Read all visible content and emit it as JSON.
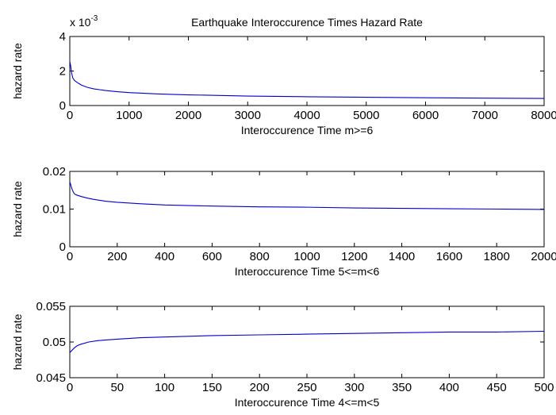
{
  "chart_data": [
    {
      "type": "line",
      "title": "Earthquake Interoccurence Times Hazard Rate",
      "xlabel": "Interoccurence Time m>=6",
      "ylabel": "hazard rate",
      "y_exponent_base": "x 10",
      "y_exponent_power": "-3",
      "xlim": [
        0,
        8000
      ],
      "ylim": [
        0,
        4
      ],
      "xticks": [
        0,
        1000,
        2000,
        3000,
        4000,
        5000,
        6000,
        7000,
        8000
      ],
      "yticks": [
        0,
        2,
        4
      ],
      "xtick_labels": [
        "0",
        "1000",
        "2000",
        "3000",
        "4000",
        "5000",
        "6000",
        "7000",
        "8000"
      ],
      "ytick_labels": [
        "0",
        "2",
        "4"
      ],
      "line_color": "#0000cc",
      "series": [
        {
          "x": [
            0,
            15,
            30,
            50,
            80,
            100,
            150,
            200,
            300,
            400,
            600,
            800,
            1000,
            1500,
            2000,
            3000,
            4000,
            5000,
            6000,
            7000,
            8000
          ],
          "values": [
            2.55,
            2.3,
            1.9,
            1.6,
            1.45,
            1.4,
            1.28,
            1.18,
            1.05,
            0.97,
            0.87,
            0.8,
            0.75,
            0.67,
            0.62,
            0.55,
            0.51,
            0.48,
            0.45,
            0.43,
            0.41
          ]
        }
      ]
    },
    {
      "type": "line",
      "xlabel": "Interoccurence Time 5<=m<6",
      "ylabel": "hazard rate",
      "xlim": [
        0,
        2000
      ],
      "ylim": [
        0,
        0.02
      ],
      "xticks": [
        0,
        200,
        400,
        600,
        800,
        1000,
        1200,
        1400,
        1600,
        1800,
        2000
      ],
      "yticks": [
        0,
        0.01,
        0.02
      ],
      "xtick_labels": [
        "0",
        "200",
        "400",
        "600",
        "800",
        "1000",
        "1200",
        "1400",
        "1600",
        "1800",
        "2000"
      ],
      "ytick_labels": [
        "0",
        "0.01",
        "0.02"
      ],
      "line_color": "#0000cc",
      "series": [
        {
          "x": [
            0,
            3,
            6,
            10,
            15,
            20,
            30,
            50,
            75,
            100,
            150,
            200,
            300,
            400,
            600,
            800,
            1000,
            1200,
            1400,
            1600,
            1800,
            2000
          ],
          "values": [
            0.0172,
            0.0167,
            0.016,
            0.0152,
            0.0145,
            0.014,
            0.0137,
            0.0133,
            0.0129,
            0.0126,
            0.0121,
            0.0118,
            0.0114,
            0.0111,
            0.0108,
            0.0106,
            0.0105,
            0.0103,
            0.0102,
            0.0101,
            0.01,
            0.0099
          ]
        }
      ]
    },
    {
      "type": "line",
      "xlabel": "Interoccurence Time 4<=m<5",
      "ylabel": "hazard rate",
      "xlim": [
        0,
        500
      ],
      "ylim": [
        0.045,
        0.055
      ],
      "xticks": [
        0,
        50,
        100,
        150,
        200,
        250,
        300,
        350,
        400,
        450,
        500
      ],
      "yticks": [
        0.045,
        0.05,
        0.055
      ],
      "xtick_labels": [
        "0",
        "50",
        "100",
        "150",
        "200",
        "250",
        "300",
        "350",
        "400",
        "450",
        "500"
      ],
      "ytick_labels": [
        "0.045",
        "0.05",
        "0.055"
      ],
      "line_color": "#0000cc",
      "series": [
        {
          "x": [
            0,
            2,
            5,
            8,
            12,
            20,
            30,
            50,
            75,
            100,
            150,
            200,
            250,
            300,
            350,
            400,
            450,
            500
          ],
          "values": [
            0.0485,
            0.0488,
            0.0492,
            0.0495,
            0.0497,
            0.05,
            0.0502,
            0.0504,
            0.0506,
            0.0507,
            0.0509,
            0.051,
            0.0511,
            0.0512,
            0.0513,
            0.0514,
            0.0514,
            0.0515
          ]
        }
      ]
    }
  ]
}
